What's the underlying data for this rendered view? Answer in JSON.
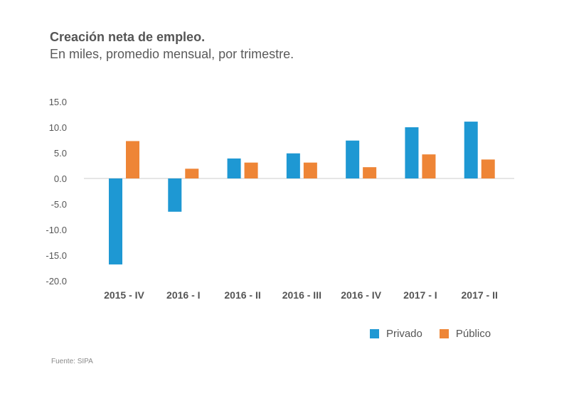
{
  "header": {
    "title": "Creación neta de empleo.",
    "subtitle": "En miles, promedio mensual, por trimestre."
  },
  "footer": {
    "source": "Fuente: SIPA"
  },
  "colors": {
    "privado": "#1E98D3",
    "publico": "#EE8536",
    "axis": "#cccccc",
    "text": "#555555"
  },
  "chart_data": {
    "type": "bar",
    "categories": [
      "2015 - IV",
      "2016 - I",
      "2016 - II",
      "2016 - III",
      "2016 - IV",
      "2017 - I",
      "2017 - II"
    ],
    "series": [
      {
        "name": "Privado",
        "values": [
          -16.8,
          -6.5,
          3.9,
          4.9,
          7.4,
          10.0,
          11.1
        ]
      },
      {
        "name": "Público",
        "values": [
          7.3,
          1.9,
          3.1,
          3.1,
          2.2,
          4.7,
          3.7
        ]
      }
    ],
    "yticks": [
      "15.0",
      "10.0",
      "5.0",
      "0.0",
      "-5.0",
      "-10.0",
      "-15.0",
      "-20.0"
    ],
    "ylim": [
      -20,
      15
    ],
    "grid": false,
    "legend_position": "bottom-right"
  }
}
